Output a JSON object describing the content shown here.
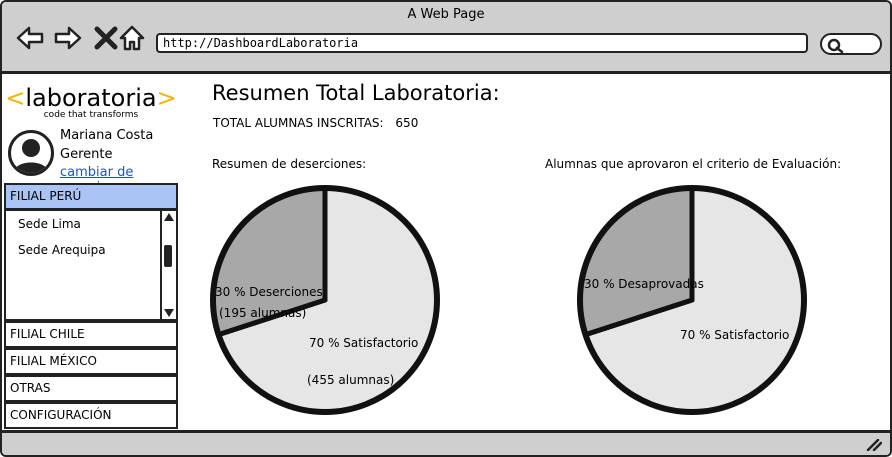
{
  "window": {
    "title": "A Web Page"
  },
  "browser": {
    "url": "http://DashboardLaboratoria"
  },
  "logo": {
    "main_open": "<",
    "main": "laboratoria",
    "main_close": ">",
    "tagline": "code that transforms"
  },
  "user": {
    "name": "Mariana Costa",
    "role": "Gerente",
    "switch_link": "cambiar de usuario"
  },
  "sidebar": {
    "active": {
      "label": "FILIAL PERÚ",
      "subitems": [
        "Sede Lima",
        "Sede Arequipa"
      ]
    },
    "items": [
      "FILIAL CHILE",
      "FILIAL MÉXICO",
      "OTRAS",
      "CONFIGURACIÓN"
    ]
  },
  "main": {
    "title": "Resumen  Total Laboratoria:",
    "total_label": "TOTAL ALUMNAS INSCRITAS:",
    "total_value": "650"
  },
  "chart_data": [
    {
      "type": "pie",
      "title": "Resumen de deserciones:",
      "slices": [
        {
          "label": "30 % Deserciones",
          "sublabel": "(195 alumnas)",
          "value": 195,
          "color": "#a8a8a8"
        },
        {
          "label": "70 % Satisfactorio",
          "sublabel": "(455 alumnas)",
          "value": 455,
          "color": "#e6e6e6"
        }
      ]
    },
    {
      "type": "pie",
      "title": "Alumnas que aprovaron el criterio de Evaluación:",
      "slices": [
        {
          "label": "30 % Desaprovadas",
          "value": 30,
          "color": "#a8a8a8"
        },
        {
          "label": "70 % Satisfactorio",
          "value": 70,
          "color": "#e6e6e6"
        }
      ]
    }
  ]
}
